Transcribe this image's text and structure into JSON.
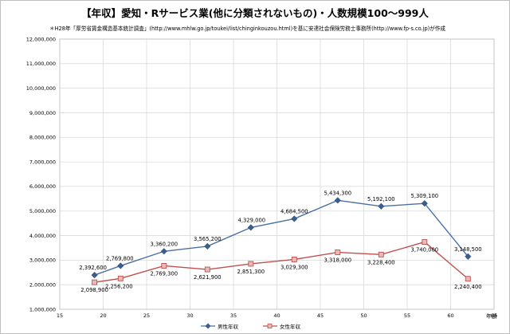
{
  "chart_data": {
    "type": "line",
    "title": "【年収】愛知・Rサービス業(他に分類されないもの)・人数規模100〜999人",
    "subtitle": "＊H28年「厚労省賃金構造基本統計調査」(http://www.mhlw.go.jp/toukei/list/chinginkouzou.html)を基に安達社会保険労務士事務所(http://www.fp-s.co.jp)が作成",
    "xlabel": "年齢",
    "ylabel": "",
    "xlim": [
      15,
      65
    ],
    "ylim": [
      1000000,
      12000000
    ],
    "x_ticks": [
      "15",
      "20",
      "25",
      "30",
      "35",
      "40",
      "45",
      "50",
      "55",
      "60",
      "65"
    ],
    "y_ticks": [
      "1,000,000",
      "2,000,000",
      "3,000,000",
      "4,000,000",
      "5,000,000",
      "6,000,000",
      "7,000,000",
      "8,000,000",
      "9,000,000",
      "10,000,000",
      "11,000,000",
      "12,000,000"
    ],
    "grid": true,
    "legend_position": "bottom",
    "x": [
      19,
      22,
      27,
      32,
      37,
      42,
      47,
      52,
      57,
      62
    ],
    "series": [
      {
        "name": "男性年収",
        "color": "#4a6fa5",
        "marker": "diamond",
        "values": [
          2392600,
          2769800,
          3360200,
          3565200,
          4329000,
          4684500,
          5434300,
          5192100,
          5309100,
          3148500
        ],
        "labels": [
          "2,392,600",
          "2,769,800",
          "3,360,200",
          "3,565,200",
          "4,329,000",
          "4,684,500",
          "5,434,300",
          "5,192,100",
          "5,309,100",
          "3,148,500"
        ]
      },
      {
        "name": "女性年収",
        "color": "#c0504d",
        "marker": "square",
        "values": [
          2098900,
          2256200,
          2769300,
          2621900,
          2851300,
          3029300,
          3318000,
          3228400,
          3740000,
          2240400
        ],
        "labels": [
          "2,098,900",
          "2,256,200",
          "2,769,300",
          "2,621,900",
          "2,851,300",
          "3,029,300",
          "3,318,000",
          "3,228,400",
          "3,740,000",
          "2,240,400"
        ]
      }
    ]
  }
}
